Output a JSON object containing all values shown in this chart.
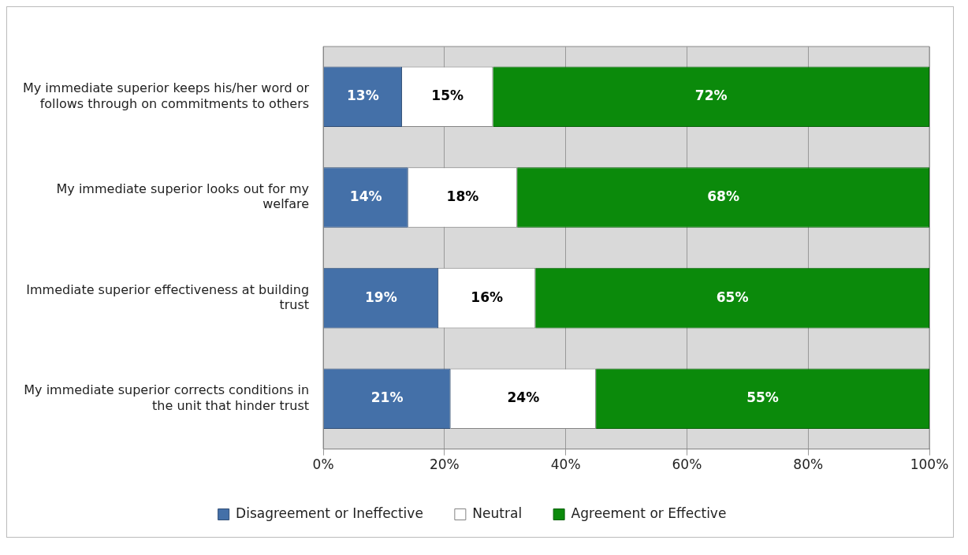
{
  "chart_data": {
    "type": "bar",
    "orientation": "horizontal",
    "stacked": true,
    "categories": [
      "My immediate superior keeps his/her word or follows through on commitments to others",
      "My immediate superior looks out for my welfare",
      "Immediate superior effectiveness at building trust",
      "My immediate superior corrects conditions in the unit that hinder trust"
    ],
    "series": [
      {
        "name": "Disagreement or Ineffective",
        "color": "#4470a8",
        "values": [
          13,
          14,
          19,
          21
        ],
        "value_labels": [
          "13%",
          "14%",
          "19%",
          "21%"
        ]
      },
      {
        "name": "Neutral",
        "color": "#ffffff",
        "values": [
          15,
          18,
          16,
          24
        ],
        "value_labels": [
          "15%",
          "18%",
          "16%",
          "24%"
        ]
      },
      {
        "name": "Agreement or Effective",
        "color": "#0b8a0b",
        "values": [
          72,
          68,
          65,
          55
        ],
        "value_labels": [
          "72%",
          "68%",
          "65%",
          "55%"
        ]
      }
    ],
    "xlim": [
      0,
      100
    ],
    "xticks": [
      {
        "value": 0,
        "label": "0%"
      },
      {
        "value": 20,
        "label": "20%"
      },
      {
        "value": 40,
        "label": "40%"
      },
      {
        "value": 60,
        "label": "60%"
      },
      {
        "value": 80,
        "label": "80%"
      },
      {
        "value": 100,
        "label": "100%"
      }
    ],
    "grid": "x",
    "legend": "bottom"
  }
}
